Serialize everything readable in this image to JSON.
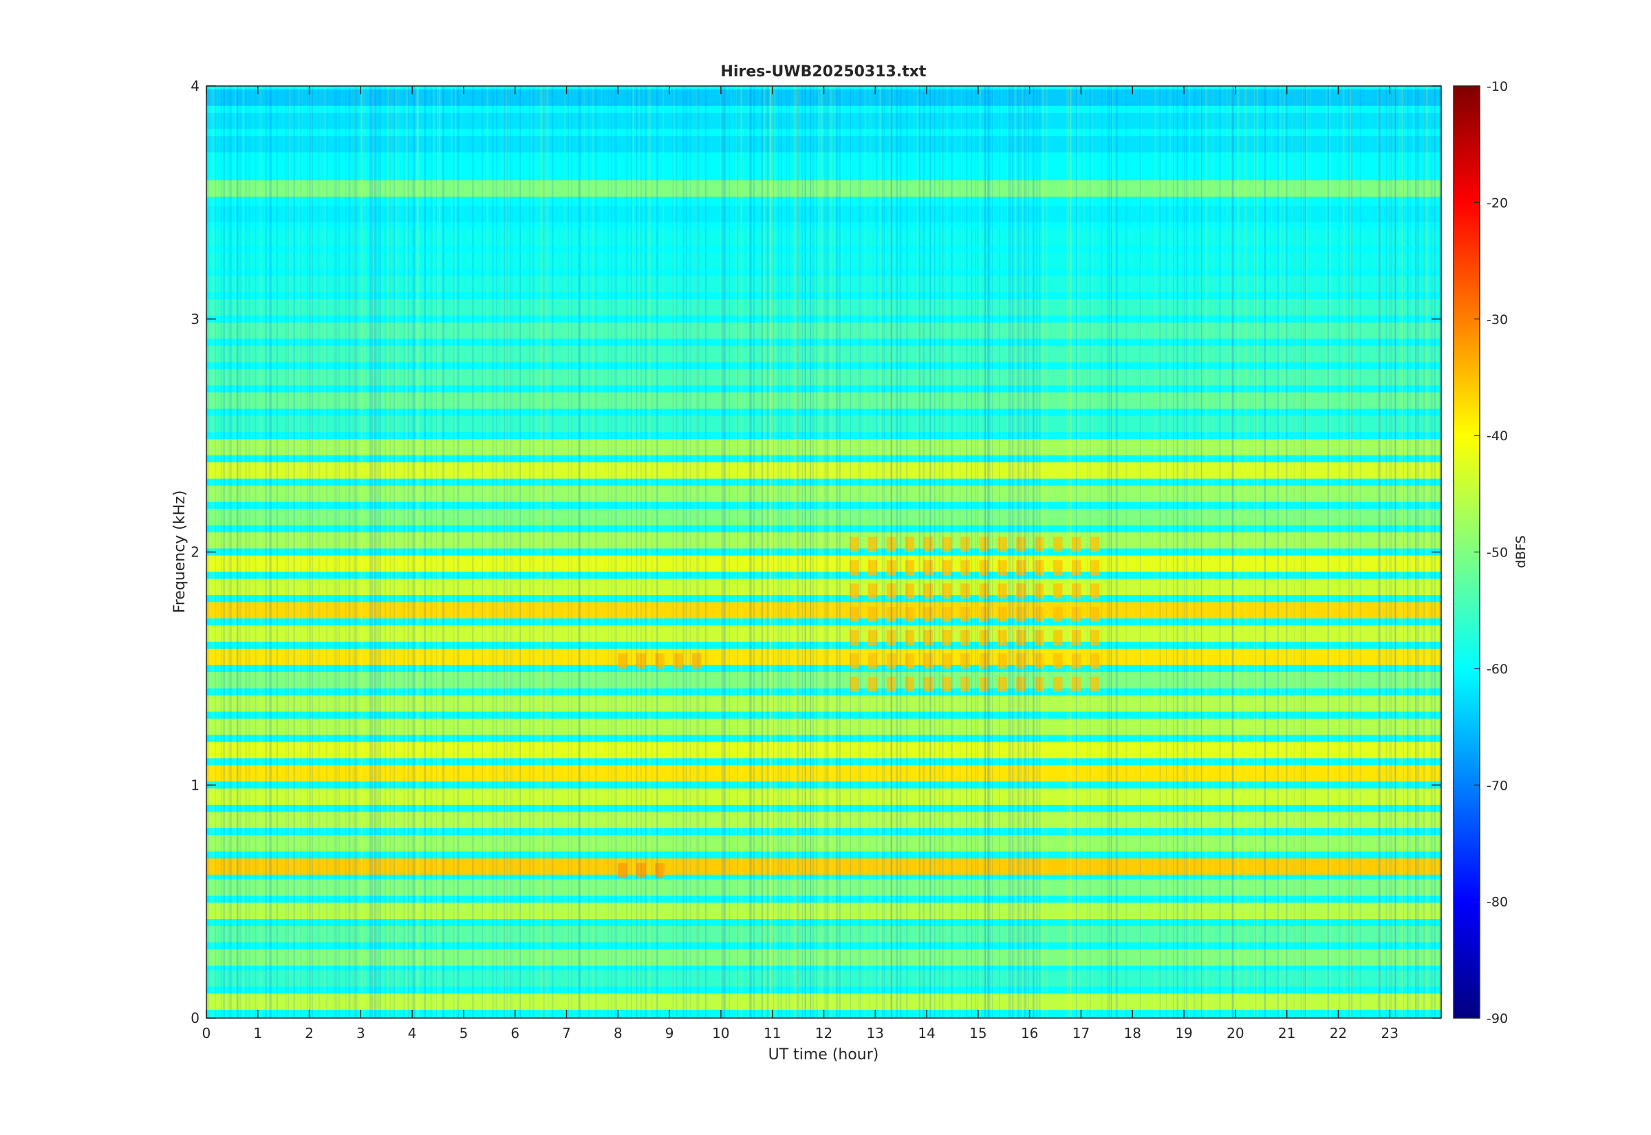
{
  "chart_data": {
    "type": "heatmap",
    "title": "Hires-UWB20250313.txt",
    "xlabel": "UT time (hour)",
    "ylabel": "Frequency (kHz)",
    "colorbar_label": "dBFS",
    "xlim": [
      0,
      24
    ],
    "ylim": [
      0,
      4
    ],
    "clim": [
      -90,
      -10
    ],
    "colormap": "jet",
    "x_ticks": [
      0,
      1,
      2,
      3,
      4,
      5,
      6,
      7,
      8,
      9,
      10,
      11,
      12,
      13,
      14,
      15,
      16,
      17,
      18,
      19,
      20,
      21,
      22,
      23
    ],
    "x_tick_labels": [
      "0",
      "1",
      "2",
      "3",
      "4",
      "5",
      "6",
      "7",
      "8",
      "9",
      "10",
      "11",
      "12",
      "13",
      "14",
      "15",
      "16",
      "17",
      "18",
      "19",
      "20",
      "21",
      "22",
      "23"
    ],
    "y_ticks": [
      0,
      1,
      2,
      3,
      4
    ],
    "y_tick_labels": [
      "0",
      "1",
      "2",
      "3",
      "4"
    ],
    "colorbar_ticks": [
      -90,
      -80,
      -70,
      -60,
      -50,
      -40,
      -30,
      -20,
      -10
    ],
    "colorbar_tick_labels": [
      "-90",
      "-80",
      "-70",
      "-60",
      "-50",
      "-40",
      "-30",
      "-20",
      "-10"
    ],
    "grid": false,
    "background_level_dbfs": -60,
    "bands": [
      {
        "freq_khz": 0.07,
        "level_dbfs": -45
      },
      {
        "freq_khz": 0.17,
        "level_dbfs": -56
      },
      {
        "freq_khz": 0.26,
        "level_dbfs": -50
      },
      {
        "freq_khz": 0.36,
        "level_dbfs": -53
      },
      {
        "freq_khz": 0.46,
        "level_dbfs": -46
      },
      {
        "freq_khz": 0.56,
        "level_dbfs": -50
      },
      {
        "freq_khz": 0.65,
        "level_dbfs": -36
      },
      {
        "freq_khz": 0.75,
        "level_dbfs": -48
      },
      {
        "freq_khz": 0.85,
        "level_dbfs": -46
      },
      {
        "freq_khz": 0.95,
        "level_dbfs": -44
      },
      {
        "freq_khz": 1.05,
        "level_dbfs": -38
      },
      {
        "freq_khz": 1.15,
        "level_dbfs": -42
      },
      {
        "freq_khz": 1.25,
        "level_dbfs": -46
      },
      {
        "freq_khz": 1.35,
        "level_dbfs": -46
      },
      {
        "freq_khz": 1.45,
        "level_dbfs": -50
      },
      {
        "freq_khz": 1.55,
        "level_dbfs": -38
      },
      {
        "freq_khz": 1.65,
        "level_dbfs": -44
      },
      {
        "freq_khz": 1.75,
        "level_dbfs": -37
      },
      {
        "freq_khz": 1.85,
        "level_dbfs": -44
      },
      {
        "freq_khz": 1.95,
        "level_dbfs": -42
      },
      {
        "freq_khz": 2.05,
        "level_dbfs": -47
      },
      {
        "freq_khz": 2.15,
        "level_dbfs": -50
      },
      {
        "freq_khz": 2.25,
        "level_dbfs": -48
      },
      {
        "freq_khz": 2.35,
        "level_dbfs": -43
      },
      {
        "freq_khz": 2.45,
        "level_dbfs": -47
      },
      {
        "freq_khz": 2.55,
        "level_dbfs": -56
      },
      {
        "freq_khz": 2.65,
        "level_dbfs": -52
      },
      {
        "freq_khz": 2.75,
        "level_dbfs": -54
      },
      {
        "freq_khz": 2.85,
        "level_dbfs": -55
      },
      {
        "freq_khz": 2.95,
        "level_dbfs": -54
      },
      {
        "freq_khz": 3.05,
        "level_dbfs": -56
      },
      {
        "freq_khz": 3.15,
        "level_dbfs": -58
      },
      {
        "freq_khz": 3.25,
        "level_dbfs": -59
      },
      {
        "freq_khz": 3.35,
        "level_dbfs": -59
      },
      {
        "freq_khz": 3.45,
        "level_dbfs": -61
      },
      {
        "freq_khz": 3.56,
        "level_dbfs": -50
      },
      {
        "freq_khz": 3.65,
        "level_dbfs": -60
      },
      {
        "freq_khz": 3.75,
        "level_dbfs": -62
      },
      {
        "freq_khz": 3.85,
        "level_dbfs": -62
      },
      {
        "freq_khz": 3.95,
        "level_dbfs": -64
      }
    ],
    "notable_features": [
      {
        "time_range_h": [
          12.5,
          17.5
        ],
        "freq_range_khz": [
          1.4,
          2.1
        ],
        "level_dbfs": -35
      },
      {
        "time_range_h": [
          8.0,
          9.5
        ],
        "freq_range_khz": [
          1.5,
          1.6
        ],
        "level_dbfs": -34
      },
      {
        "time_range_h": [
          8.0,
          9.0
        ],
        "freq_range_khz": [
          0.6,
          0.7
        ],
        "level_dbfs": -32
      }
    ]
  }
}
